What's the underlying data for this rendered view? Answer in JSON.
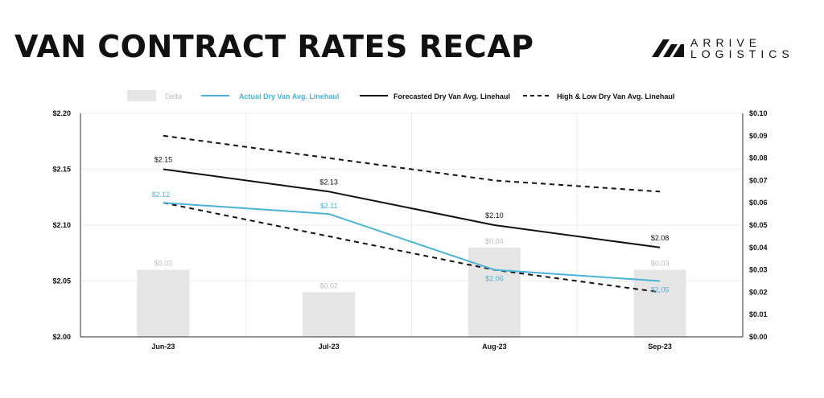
{
  "page": {
    "title": "VAN CONTRACT RATES RECAP"
  },
  "brand": {
    "line1": "ARRIVE",
    "line2": "LOGISTICS"
  },
  "legend": {
    "delta": "Delta",
    "actual": "Actual Dry Van Avg. Linehaul",
    "forecast": "Forecasted Dry Van Avg. Linehaul",
    "highlow": "High & Low Dry Van Avg. Linehaul"
  },
  "colors": {
    "actual": "#4ab3d4",
    "forecast": "#111111",
    "highlow": "#111111",
    "delta": "#e6e5e6",
    "delta_label": "#bdbdbd"
  },
  "chart_data": {
    "type": "bar",
    "categories": [
      "Jun-23",
      "Jul-23",
      "Aug-23",
      "Sep-23"
    ],
    "left_axis": {
      "range": [
        2.0,
        2.2
      ],
      "ticks": [
        "$2.00",
        "$2.05",
        "$2.10",
        "$2.15",
        "$2.20"
      ]
    },
    "right_axis": {
      "range": [
        0.0,
        0.1
      ],
      "ticks": [
        "$0.00",
        "$0.01",
        "$0.02",
        "$0.03",
        "$0.04",
        "$0.05",
        "$0.06",
        "$0.07",
        "$0.08",
        "$0.09",
        "$0.10"
      ]
    },
    "series": [
      {
        "name": "Delta",
        "type": "bar",
        "axis": "right",
        "values": [
          0.03,
          0.02,
          0.04,
          0.03
        ],
        "labels": [
          "$0.03",
          "$0.02",
          "$0.04",
          "$0.03"
        ]
      },
      {
        "name": "Actual Dry Van Avg. Linehaul",
        "type": "line",
        "axis": "left",
        "values": [
          2.12,
          2.11,
          2.06,
          2.05
        ],
        "labels": [
          "$2.12",
          "$2.11",
          "$2.06",
          "$2.05"
        ]
      },
      {
        "name": "Forecasted Dry Van Avg. Linehaul",
        "type": "line",
        "axis": "left",
        "values": [
          2.15,
          2.13,
          2.1,
          2.08
        ],
        "labels": [
          "$2.15",
          "$2.13",
          "$2.10",
          "$2.08"
        ]
      },
      {
        "name": "High & Low Dry Van Avg. Linehaul (high)",
        "type": "line-dashed",
        "axis": "left",
        "values": [
          2.18,
          2.16,
          2.14,
          2.13
        ]
      },
      {
        "name": "High & Low Dry Van Avg. Linehaul (low)",
        "type": "line-dashed",
        "axis": "left",
        "values": [
          2.12,
          2.09,
          2.06,
          2.04
        ]
      }
    ],
    "grid": true,
    "legend_position": "top"
  }
}
